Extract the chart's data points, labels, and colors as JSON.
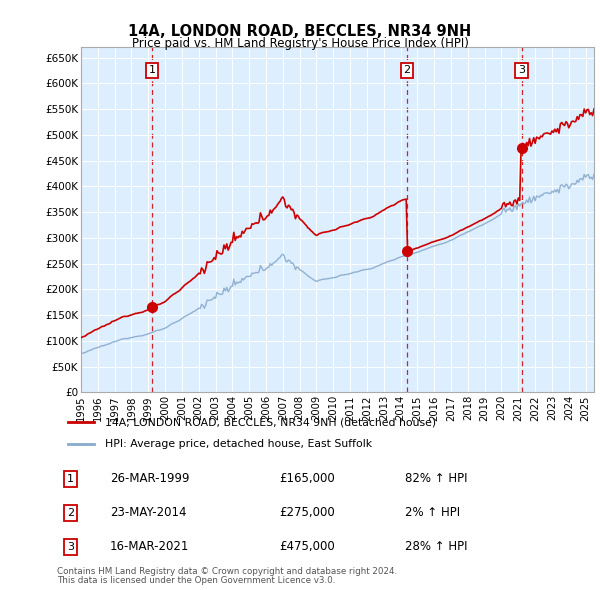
{
  "title": "14A, LONDON ROAD, BECCLES, NR34 9NH",
  "subtitle": "Price paid vs. HM Land Registry's House Price Index (HPI)",
  "ylabel_ticks": [
    "£0",
    "£50K",
    "£100K",
    "£150K",
    "£200K",
    "£250K",
    "£300K",
    "£350K",
    "£400K",
    "£450K",
    "£500K",
    "£550K",
    "£600K",
    "£650K"
  ],
  "ytick_values": [
    0,
    50000,
    100000,
    150000,
    200000,
    250000,
    300000,
    350000,
    400000,
    450000,
    500000,
    550000,
    600000,
    650000
  ],
  "ylim": [
    0,
    670000
  ],
  "xlim_start": 1995.0,
  "xlim_end": 2025.5,
  "background_color": "#ddeeff",
  "sale_color": "#cc0000",
  "hpi_color": "#88aacc",
  "vline_color": "#cc0000",
  "marker_color": "#cc0000",
  "legend_sale_label": "14A, LONDON ROAD, BECCLES, NR34 9NH (detached house)",
  "legend_hpi_label": "HPI: Average price, detached house, East Suffolk",
  "transactions": [
    {
      "id": 1,
      "date_num": 1999.23,
      "price": 165000,
      "date_str": "26-MAR-1999",
      "pct": "82%",
      "dir": "↑"
    },
    {
      "id": 2,
      "date_num": 2014.38,
      "price": 275000,
      "date_str": "23-MAY-2014",
      "pct": "2%",
      "dir": "↑"
    },
    {
      "id": 3,
      "date_num": 2021.2,
      "price": 475000,
      "date_str": "16-MAR-2021",
      "pct": "28%",
      "dir": "↑"
    }
  ],
  "footnote1": "Contains HM Land Registry data © Crown copyright and database right 2024.",
  "footnote2": "This data is licensed under the Open Government Licence v3.0.",
  "xtick_years": [
    1995,
    1996,
    1997,
    1998,
    1999,
    2000,
    2001,
    2002,
    2003,
    2004,
    2005,
    2006,
    2007,
    2008,
    2009,
    2010,
    2011,
    2012,
    2013,
    2014,
    2015,
    2016,
    2017,
    2018,
    2019,
    2020,
    2021,
    2022,
    2023,
    2024,
    2025
  ]
}
